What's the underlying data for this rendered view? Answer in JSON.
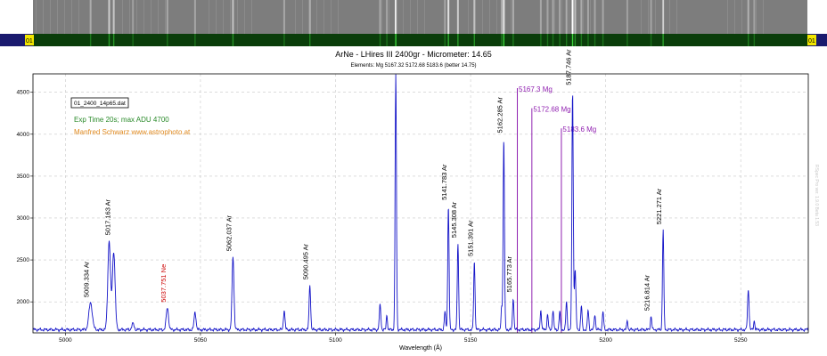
{
  "strip": {
    "left_marker": "01",
    "right_marker": "01",
    "colors": {
      "bar": "#1a1a6e",
      "marker_bg": "#f2e600",
      "spectrum_bg": "#7d7d7d",
      "band": "#0a3d0a"
    }
  },
  "chart_data": {
    "type": "line",
    "title": "ArNe - LHires III 2400gr - Micrometer: 14.65",
    "subtitle": "Elements: Mg 5167.32 5172.68 5183.6 (better 14.75)",
    "xlabel": "Wavelength (Å)",
    "ylabel": "",
    "xlim": [
      4988,
      5275
    ],
    "ylim": [
      1630,
      4720
    ],
    "xticks": [
      5000,
      5050,
      5100,
      5150,
      5200,
      5250
    ],
    "yticks": [
      2000,
      2500,
      3000,
      3500,
      4000,
      4500
    ],
    "grid": true,
    "line_color": "#1515c8",
    "baseline": 1668,
    "peaks": [
      {
        "x": 5009.33,
        "y": 1990,
        "w": 0.9
      },
      {
        "x": 5016.2,
        "y": 2730,
        "w": 0.7
      },
      {
        "x": 5017.9,
        "y": 2600,
        "w": 0.7
      },
      {
        "x": 5025.0,
        "y": 1740,
        "w": 0.6
      },
      {
        "x": 5037.75,
        "y": 1930,
        "w": 0.6
      },
      {
        "x": 5048.0,
        "y": 1880,
        "w": 0.5
      },
      {
        "x": 5062.04,
        "y": 2540,
        "w": 0.5
      },
      {
        "x": 5081.0,
        "y": 1900,
        "w": 0.4
      },
      {
        "x": 5090.5,
        "y": 2200,
        "w": 0.4
      },
      {
        "x": 5116.5,
        "y": 1960,
        "w": 0.4
      },
      {
        "x": 5119.0,
        "y": 1850,
        "w": 0.3
      },
      {
        "x": 5122.3,
        "y": 4720,
        "w": 0.35
      },
      {
        "x": 5140.5,
        "y": 1880,
        "w": 0.35
      },
      {
        "x": 5141.78,
        "y": 3150,
        "w": 0.35
      },
      {
        "x": 5145.31,
        "y": 2700,
        "w": 0.35
      },
      {
        "x": 5151.39,
        "y": 2480,
        "w": 0.35
      },
      {
        "x": 5161.5,
        "y": 1950,
        "w": 0.3
      },
      {
        "x": 5162.29,
        "y": 3950,
        "w": 0.35
      },
      {
        "x": 5165.77,
        "y": 2050,
        "w": 0.35
      },
      {
        "x": 5176.0,
        "y": 1900,
        "w": 0.35
      },
      {
        "x": 5178.5,
        "y": 1850,
        "w": 0.35
      },
      {
        "x": 5180.5,
        "y": 1900,
        "w": 0.35
      },
      {
        "x": 5183.0,
        "y": 1880,
        "w": 0.35
      },
      {
        "x": 5185.5,
        "y": 2000,
        "w": 0.35
      },
      {
        "x": 5187.75,
        "y": 4520,
        "w": 0.35
      },
      {
        "x": 5188.7,
        "y": 2380,
        "w": 0.4
      },
      {
        "x": 5191.0,
        "y": 1950,
        "w": 0.35
      },
      {
        "x": 5193.5,
        "y": 1900,
        "w": 0.35
      },
      {
        "x": 5196.0,
        "y": 1850,
        "w": 0.35
      },
      {
        "x": 5199.0,
        "y": 1880,
        "w": 0.35
      },
      {
        "x": 5208.0,
        "y": 1780,
        "w": 0.3
      },
      {
        "x": 5216.8,
        "y": 1830,
        "w": 0.35
      },
      {
        "x": 5221.27,
        "y": 2860,
        "w": 0.35
      },
      {
        "x": 5252.8,
        "y": 2150,
        "w": 0.4
      },
      {
        "x": 5255.0,
        "y": 1780,
        "w": 0.3
      }
    ],
    "line_labels": [
      {
        "x": 5009.33,
        "y": 1990,
        "text": "5009.334 Ar",
        "color": "#000000"
      },
      {
        "x": 5017.16,
        "y": 2730,
        "text": "5017.163 Ar",
        "color": "#000000"
      },
      {
        "x": 5037.75,
        "y": 1930,
        "text": "5037.751 Ne",
        "color": "#cc0000"
      },
      {
        "x": 5062.04,
        "y": 2540,
        "text": "5062.037 Ar",
        "color": "#000000"
      },
      {
        "x": 5090.5,
        "y": 2200,
        "text": "5090.495 Ar",
        "color": "#000000"
      },
      {
        "x": 5141.78,
        "y": 3150,
        "text": "5141.783 Ar",
        "color": "#000000"
      },
      {
        "x": 5145.31,
        "y": 2700,
        "text": "5145.308 Ar",
        "color": "#000000"
      },
      {
        "x": 5151.39,
        "y": 2480,
        "text": "5151.391 Ar",
        "color": "#000000"
      },
      {
        "x": 5162.29,
        "y": 3950,
        "text": "5162.285 Ar",
        "color": "#000000"
      },
      {
        "x": 5165.77,
        "y": 2050,
        "text": "5165.773 Ar",
        "color": "#000000"
      },
      {
        "x": 5187.75,
        "y": 4520,
        "text": "5187.746 Ar",
        "color": "#000000"
      },
      {
        "x": 5216.81,
        "y": 1830,
        "text": "5216.814 Ar",
        "color": "#000000"
      },
      {
        "x": 5221.27,
        "y": 2860,
        "text": "5221.271 Ar",
        "color": "#000000"
      }
    ],
    "element_lines": [
      {
        "x": 5167.3,
        "ytop": 4550,
        "text": "5167.3 Mg",
        "color": "#9020b0"
      },
      {
        "x": 5172.68,
        "ytop": 4310,
        "text": "5172.68 Mg",
        "color": "#9020b0"
      },
      {
        "x": 5183.6,
        "ytop": 4070,
        "text": "5183.6 Mg",
        "color": "#9020b0"
      }
    ],
    "annotations": {
      "file_label": "01_2400_14p65.dat",
      "exposure": "Exp Time 20s; max ADU 4700",
      "author": "Manfred Schwarz www.astrophoto.at",
      "exposure_color": "#2a8a2a",
      "author_color": "#e08a20",
      "side_note": "RSpec Pro ver. 1.9.0 Beta 1.53"
    }
  }
}
